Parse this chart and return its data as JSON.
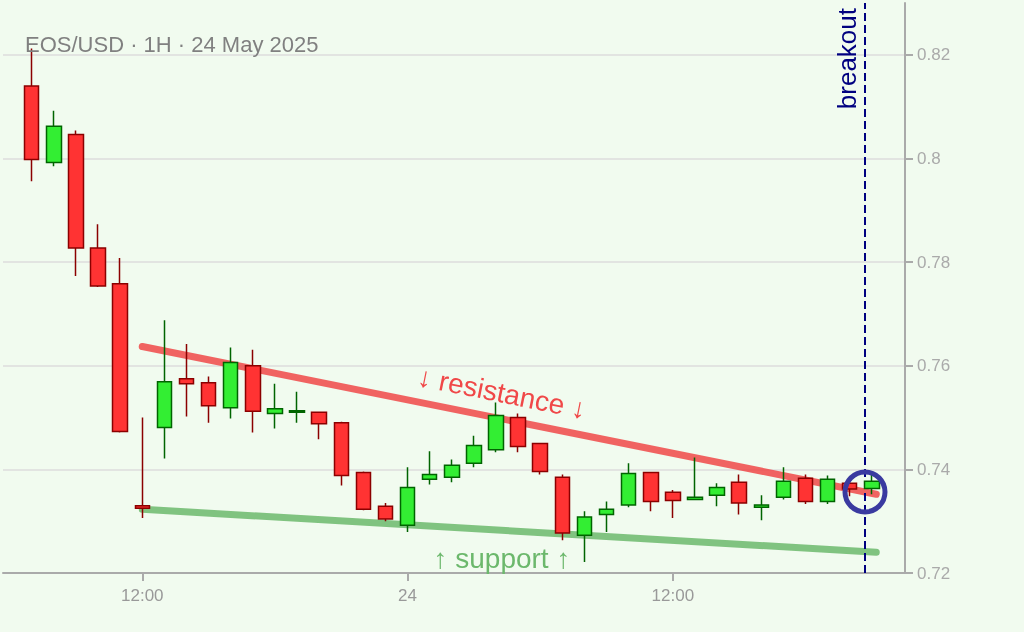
{
  "chart_data": {
    "type": "candlestick",
    "title": "EOS/USD · 1H · 24 May 2025",
    "x": [
      "2025-05-23T07:00",
      "2025-05-23T08:00",
      "2025-05-23T09:00",
      "2025-05-23T10:00",
      "2025-05-23T11:00",
      "2025-05-23T12:00",
      "2025-05-23T13:00",
      "2025-05-23T14:00",
      "2025-05-23T15:00",
      "2025-05-23T16:00",
      "2025-05-23T17:00",
      "2025-05-23T18:00",
      "2025-05-23T19:00",
      "2025-05-23T20:00",
      "2025-05-23T21:00",
      "2025-05-23T22:00",
      "2025-05-23T23:00",
      "2025-05-24T00:00",
      "2025-05-24T01:00",
      "2025-05-24T02:00",
      "2025-05-24T03:00",
      "2025-05-24T04:00",
      "2025-05-24T05:00",
      "2025-05-24T06:00",
      "2025-05-24T07:00",
      "2025-05-24T08:00",
      "2025-05-24T09:00",
      "2025-05-24T10:00",
      "2025-05-24T11:00",
      "2025-05-24T12:00",
      "2025-05-24T13:00",
      "2025-05-24T14:00",
      "2025-05-24T15:00",
      "2025-05-24T16:00",
      "2025-05-24T17:00",
      "2025-05-24T18:00",
      "2025-05-24T19:00",
      "2025-05-24T20:00",
      "2025-05-24T21:00"
    ],
    "ohlc": [
      [
        0.814,
        0.8212,
        0.7956,
        0.7998
      ],
      [
        0.7992,
        0.8092,
        0.7985,
        0.8062
      ],
      [
        0.8046,
        0.8054,
        0.7773,
        0.7827
      ],
      [
        0.7827,
        0.7873,
        0.7752,
        0.7754
      ],
      [
        0.7758,
        0.7808,
        0.7471,
        0.7473
      ],
      [
        0.733,
        0.75,
        0.7306,
        0.7325
      ],
      [
        0.7481,
        0.7688,
        0.7421,
        0.7569
      ],
      [
        0.7575,
        0.7642,
        0.7502,
        0.7565
      ],
      [
        0.7567,
        0.7579,
        0.749,
        0.7523
      ],
      [
        0.7519,
        0.7635,
        0.7498,
        0.7606
      ],
      [
        0.76,
        0.7631,
        0.7471,
        0.7512
      ],
      [
        0.7508,
        0.7565,
        0.7479,
        0.7517
      ],
      [
        0.751,
        0.755,
        0.749,
        0.7513
      ],
      [
        0.751,
        0.751,
        0.7458,
        0.7488
      ],
      [
        0.749,
        0.7492,
        0.7369,
        0.7388
      ],
      [
        0.7394,
        0.7396,
        0.7321,
        0.7323
      ],
      [
        0.7329,
        0.7335,
        0.73,
        0.7304
      ],
      [
        0.7292,
        0.7404,
        0.7279,
        0.7365
      ],
      [
        0.7381,
        0.7435,
        0.7371,
        0.739
      ],
      [
        0.7385,
        0.7419,
        0.7375,
        0.7408
      ],
      [
        0.7412,
        0.7465,
        0.7404,
        0.7446
      ],
      [
        0.7438,
        0.7529,
        0.7433,
        0.7504
      ],
      [
        0.75,
        0.7508,
        0.7433,
        0.7444
      ],
      [
        0.745,
        0.745,
        0.739,
        0.7396
      ],
      [
        0.7385,
        0.739,
        0.7263,
        0.7277
      ],
      [
        0.7273,
        0.7319,
        0.7221,
        0.7308
      ],
      [
        0.7313,
        0.7338,
        0.7279,
        0.7323
      ],
      [
        0.7331,
        0.7412,
        0.7327,
        0.7392
      ],
      [
        0.7394,
        0.7394,
        0.7319,
        0.7338
      ],
      [
        0.7356,
        0.736,
        0.7306,
        0.734
      ],
      [
        0.7342,
        0.7423,
        0.7342,
        0.7346
      ],
      [
        0.735,
        0.7373,
        0.7329,
        0.7365
      ],
      [
        0.7375,
        0.739,
        0.7313,
        0.7335
      ],
      [
        0.7327,
        0.735,
        0.7302,
        0.7331
      ],
      [
        0.7346,
        0.7404,
        0.7342,
        0.7377
      ],
      [
        0.7383,
        0.739,
        0.7333,
        0.7338
      ],
      [
        0.7338,
        0.7388,
        0.7333,
        0.7381
      ],
      [
        0.7373,
        0.7377,
        0.7348,
        0.7362
      ],
      [
        0.7363,
        0.7392,
        0.7352,
        0.7377
      ]
    ],
    "series": [
      {
        "type": "line",
        "name": "↓ resistance ↓",
        "x": [
          "2025-05-23T12:00",
          "2025-05-24T21:12"
        ],
        "values": [
          0.7637,
          0.7352
        ],
        "color": "#f04848"
      },
      {
        "type": "line",
        "name": "↑ support ↑",
        "x": [
          "2025-05-23T12:00",
          "2025-05-24T21:12"
        ],
        "values": [
          0.7323,
          0.724
        ],
        "color": "#6cb86c"
      }
    ],
    "xlim": [
      "2025-05-23T05:42",
      "2025-05-24T22:30"
    ],
    "xticks": [
      {
        "value": "2025-05-23T12:00",
        "label": "12:00"
      },
      {
        "value": "2025-05-24T00:00",
        "label": "24"
      },
      {
        "value": "2025-05-24T12:00",
        "label": "12:00"
      }
    ],
    "ylim": [
      0.72,
      0.83
    ],
    "yticks": [
      0.72,
      0.74,
      0.76,
      0.78,
      0.8,
      0.82
    ],
    "grid": "y",
    "ref_lines": [
      {
        "axis": "x",
        "value": "2025-05-24T20:42",
        "label": "breakout",
        "color": "#000080",
        "line_style": "dashed"
      }
    ]
  }
}
